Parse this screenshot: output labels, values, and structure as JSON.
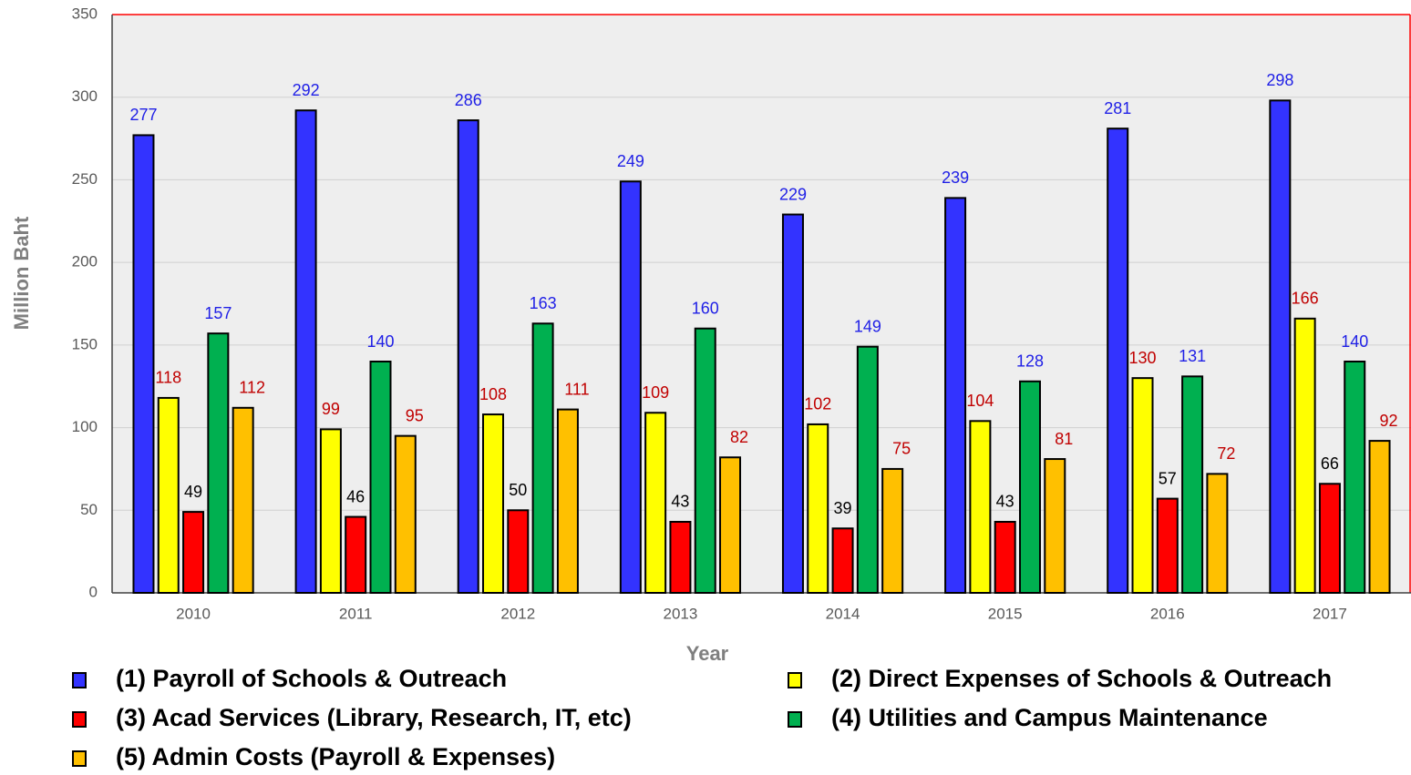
{
  "chart_data": {
    "type": "bar",
    "x_label": "Year",
    "y_label": "Million Baht",
    "categories": [
      "2010",
      "2011",
      "2012",
      "2013",
      "2014",
      "2015",
      "2016",
      "2017"
    ],
    "series": [
      {
        "name": "(1) Payroll of Schools & Outreach",
        "color": "#3333ff",
        "label_color": "#1f1fe6",
        "values": [
          277,
          292,
          286,
          249,
          229,
          239,
          281,
          298
        ]
      },
      {
        "name": "(2) Direct Expenses of Schools & Outreach",
        "color": "#ffff00",
        "label_color": "#c00000",
        "values": [
          118,
          99,
          108,
          109,
          102,
          104,
          130,
          166
        ]
      },
      {
        "name": "(3) Acad Services (Library, Research, IT, etc)",
        "color": "#ff0000",
        "label_color": "#000000",
        "values": [
          49,
          46,
          50,
          43,
          39,
          43,
          57,
          66
        ]
      },
      {
        "name": "(4) Utilities and Campus Maintenance",
        "color": "#00b050",
        "label_color": "#1f1fe6",
        "values": [
          157,
          140,
          163,
          160,
          149,
          128,
          131,
          140
        ]
      },
      {
        "name": "(5) Admin Costs (Payroll & Expenses)",
        "color": "#ffc000",
        "label_color": "#c00000",
        "values": [
          112,
          95,
          111,
          82,
          75,
          81,
          72,
          92
        ]
      }
    ],
    "ylim": [
      0,
      350
    ],
    "yticks": [
      0,
      50,
      100,
      150,
      200,
      250,
      300,
      350
    ],
    "grid": true,
    "legend": "bottom"
  }
}
